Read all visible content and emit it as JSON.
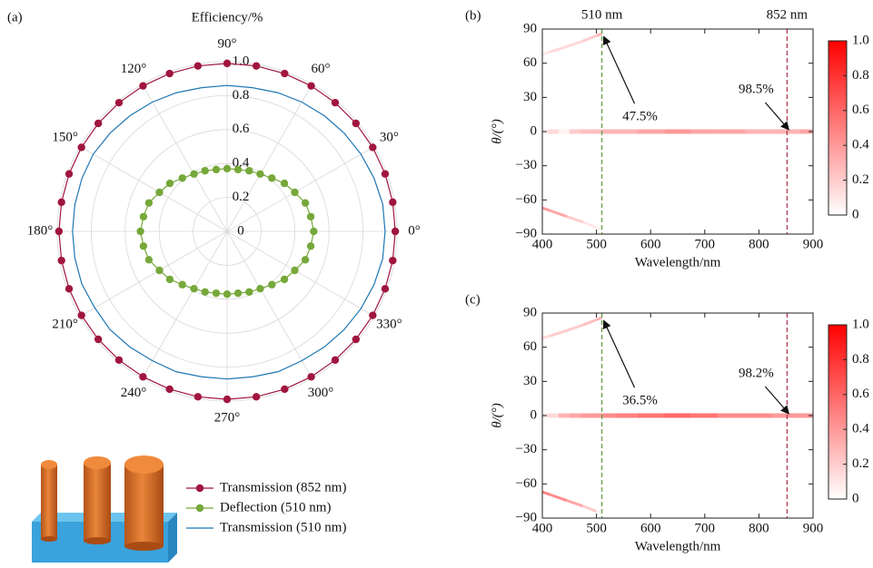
{
  "chart_data": [
    {
      "type": "polar",
      "label": "(a)",
      "title": "Efficiency/%",
      "theta": [
        0,
        10,
        20,
        30,
        40,
        50,
        60,
        70,
        80,
        90,
        100,
        110,
        120,
        130,
        140,
        150,
        160,
        170,
        180,
        190,
        200,
        210,
        220,
        230,
        240,
        250,
        260,
        270,
        280,
        290,
        300,
        310,
        320,
        330,
        340,
        350
      ],
      "rlim": [
        0,
        1
      ],
      "rticks": [
        0,
        0.2,
        0.4,
        0.6,
        0.8,
        {
          "value": 1,
          "label": "1.0"
        }
      ],
      "thetaticks": [
        {
          "value": 0,
          "label": "0°"
        },
        {
          "value": 30,
          "label": "30°"
        },
        {
          "value": 60,
          "label": "60°"
        },
        {
          "value": 90,
          "label": "90°"
        },
        {
          "value": 120,
          "label": "120°"
        },
        {
          "value": 150,
          "label": "150°"
        },
        {
          "value": 180,
          "label": "180°"
        },
        {
          "value": 210,
          "label": "210°"
        },
        {
          "value": 240,
          "label": "240°"
        },
        {
          "value": 270,
          "label": "270°"
        },
        {
          "value": 300,
          "label": "300°"
        },
        {
          "value": 330,
          "label": "330°"
        }
      ],
      "grid": true,
      "series": [
        {
          "name": "Transmission (852 nm)",
          "color": "#a0153e",
          "marker": true,
          "values": [
            0.99,
            0.99,
            0.99,
            0.99,
            0.99,
            0.99,
            0.99,
            0.99,
            0.99,
            0.99,
            0.99,
            0.99,
            0.99,
            0.99,
            0.99,
            0.99,
            0.99,
            0.99,
            0.99,
            0.99,
            0.99,
            0.99,
            0.99,
            0.99,
            0.99,
            0.99,
            0.99,
            0.99,
            0.99,
            0.99,
            0.99,
            0.99,
            0.99,
            0.99,
            0.99,
            0.99
          ]
        },
        {
          "name": "Deflection (510 nm)",
          "color": "#76a83a",
          "marker": true,
          "values": [
            0.51,
            0.5,
            0.49,
            0.46,
            0.44,
            0.41,
            0.39,
            0.38,
            0.37,
            0.37,
            0.37,
            0.38,
            0.39,
            0.41,
            0.44,
            0.46,
            0.49,
            0.5,
            0.51,
            0.5,
            0.49,
            0.46,
            0.44,
            0.41,
            0.39,
            0.38,
            0.37,
            0.37,
            0.37,
            0.38,
            0.39,
            0.41,
            0.44,
            0.46,
            0.49,
            0.5
          ]
        },
        {
          "name": "Transmission (510 nm)",
          "color": "#1f77b4",
          "marker": false,
          "values": [
            0.93,
            0.93,
            0.92,
            0.91,
            0.9,
            0.89,
            0.88,
            0.87,
            0.86,
            0.86,
            0.86,
            0.87,
            0.88,
            0.89,
            0.9,
            0.91,
            0.91,
            0.91,
            0.91,
            0.91,
            0.91,
            0.9,
            0.9,
            0.89,
            0.88,
            0.88,
            0.87,
            0.87,
            0.87,
            0.88,
            0.88,
            0.89,
            0.9,
            0.91,
            0.92,
            0.93
          ]
        }
      ]
    },
    {
      "type": "heatmap",
      "label": "(b)",
      "xlabel": "Wavelength/nm",
      "ylabel": "θ/(°)",
      "xlim": [
        400,
        900
      ],
      "xticks": [
        400,
        500,
        600,
        700,
        800,
        900
      ],
      "ylim": [
        -90,
        90
      ],
      "yticks": [
        {
          "value": -90,
          "label": "−90"
        },
        {
          "value": -60,
          "label": "−60"
        },
        {
          "value": -30,
          "label": "−30"
        },
        0,
        30,
        60,
        90
      ],
      "clim": [
        0,
        1
      ],
      "cticks": [
        0,
        0.2,
        0.4,
        0.6,
        0.8,
        {
          "value": 1,
          "label": "1.0"
        }
      ],
      "cmap": [
        "#ffffff",
        "#ff0000"
      ],
      "bands": [
        {
          "x": [
            400,
            420,
            440,
            460,
            480,
            500,
            520,
            550,
            600,
            650,
            700,
            750,
            800,
            850,
            900
          ],
          "y": [
            0,
            0,
            0,
            0,
            0,
            0,
            0,
            0,
            0,
            0,
            0,
            0,
            0,
            0,
            0
          ],
          "values": [
            0.05,
            0.15,
            0.05,
            0.2,
            0.25,
            0.25,
            0.3,
            0.3,
            0.35,
            0.4,
            0.35,
            0.35,
            0.3,
            0.3,
            0.35
          ]
        },
        {
          "x": [
            400,
            430,
            460,
            490,
            510
          ],
          "y": [
            68,
            72,
            77,
            82,
            86
          ],
          "values": [
            0.1,
            0.15,
            0.15,
            0.2,
            0.3
          ]
        },
        {
          "x": [
            400,
            430,
            460,
            490,
            510
          ],
          "y": [
            -67,
            -72,
            -77,
            -82,
            -86
          ],
          "values": [
            0.4,
            0.35,
            0.2,
            0.1,
            0.05
          ]
        }
      ],
      "vlines": [
        {
          "x": 510,
          "color": "#5c9e3c",
          "label": "510 nm"
        },
        {
          "x": 852,
          "color": "#b0304a",
          "label": "852 nm"
        }
      ],
      "annotations": [
        {
          "text": "47.5%",
          "x": 510,
          "y": 85
        },
        {
          "text": "98.5%",
          "x": 852,
          "y": 0
        }
      ]
    },
    {
      "type": "heatmap",
      "label": "(c)",
      "xlabel": "Wavelength/nm",
      "ylabel": "θ/(°)",
      "xlim": [
        400,
        900
      ],
      "xticks": [
        400,
        500,
        600,
        700,
        800,
        900
      ],
      "ylim": [
        -90,
        90
      ],
      "yticks": [
        {
          "value": -90,
          "label": "−90"
        },
        {
          "value": -60,
          "label": "−60"
        },
        {
          "value": -30,
          "label": "−30"
        },
        0,
        30,
        60,
        90
      ],
      "clim": [
        0,
        1
      ],
      "cticks": [
        0,
        0.2,
        0.4,
        0.6,
        0.8,
        {
          "value": 1,
          "label": "1.0"
        }
      ],
      "cmap": [
        "#ffffff",
        "#ff0000"
      ],
      "bands": [
        {
          "x": [
            400,
            420,
            440,
            460,
            480,
            500,
            520,
            550,
            600,
            650,
            700,
            750,
            800,
            850,
            900
          ],
          "y": [
            0,
            0,
            0,
            0,
            0,
            0,
            0,
            0,
            0,
            0,
            0,
            0,
            0,
            0,
            0
          ],
          "values": [
            0.1,
            0.15,
            0.3,
            0.35,
            0.4,
            0.4,
            0.45,
            0.5,
            0.55,
            0.6,
            0.55,
            0.45,
            0.45,
            0.4,
            0.4
          ]
        },
        {
          "x": [
            400,
            430,
            460,
            490,
            510
          ],
          "y": [
            68,
            72,
            77,
            82,
            86
          ],
          "values": [
            0.15,
            0.2,
            0.2,
            0.25,
            0.3
          ]
        },
        {
          "x": [
            400,
            430,
            460,
            490,
            510
          ],
          "y": [
            -67,
            -72,
            -77,
            -82,
            -86
          ],
          "values": [
            0.5,
            0.45,
            0.35,
            0.2,
            0.05
          ]
        }
      ],
      "vlines": [
        {
          "x": 510,
          "color": "#5c9e3c"
        },
        {
          "x": 852,
          "color": "#b0304a"
        }
      ],
      "annotations": [
        {
          "text": "36.5%",
          "x": 510,
          "y": 85
        },
        {
          "text": "98.2%",
          "x": 852,
          "y": 0
        }
      ]
    }
  ]
}
